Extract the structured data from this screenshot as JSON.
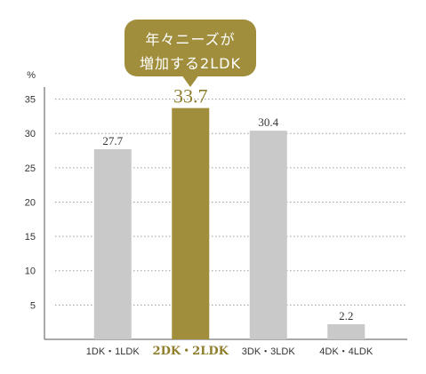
{
  "callout": {
    "line1": "年々ニーズが",
    "line2": "増加する2LDK"
  },
  "colors": {
    "bar_default": "#c9c9c9",
    "bar_highlight": "#a08e3c",
    "highlight_text": "#8f7d2c",
    "axis": "#555555",
    "grid": "#9a9a9a"
  },
  "chart_data": {
    "type": "bar",
    "unit_label": "%",
    "categories": [
      "1DK・1LDK",
      "2DK・2LDK",
      "3DK・3LDK",
      "4DK・4LDK"
    ],
    "values": [
      27.7,
      33.7,
      30.4,
      2.2
    ],
    "value_labels": [
      "27.7",
      "33.7",
      "30.4",
      "2.2"
    ],
    "highlight_index": 1,
    "yticks": [
      5,
      10,
      15,
      20,
      25,
      30,
      35
    ],
    "ylim": [
      0,
      36.5
    ],
    "grid": "horizontal dotted"
  }
}
